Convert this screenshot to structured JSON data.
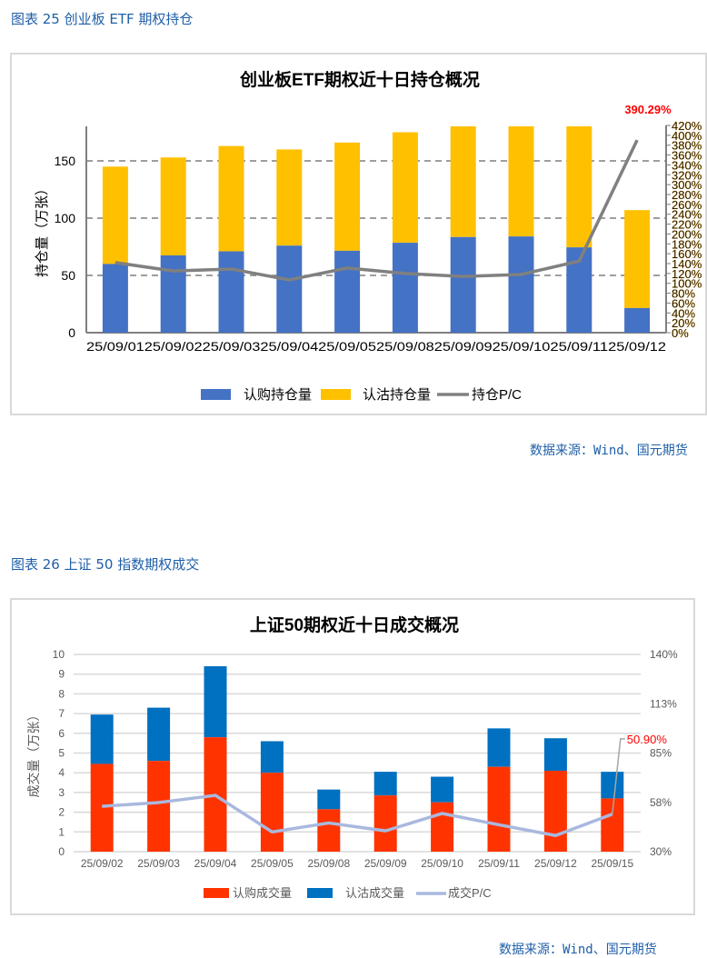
{
  "figures": [
    {
      "caption": "图表 25  创业板 ETF 期权持仓",
      "source": "数据来源：Wind、国元期货"
    },
    {
      "caption": "图表 26  上证 50 指数期权成交",
      "source": "数据来源：Wind、国元期货"
    }
  ],
  "colors": {
    "caption_blue": "#1f5fa8",
    "chart1_call": "#4472c4",
    "chart1_put": "#ffc000",
    "chart1_pc": "#808080",
    "chart2_call": "#ff3300",
    "chart2_put": "#0070c0",
    "chart2_pc": "#a9b8de",
    "annotation_red": "#ff0000"
  },
  "chart_data": [
    {
      "type": "bar",
      "stacked": true,
      "title": "创业板ETF期权近十日持仓概况",
      "ylabel": "持仓量（万张）",
      "y2label": "",
      "categories": [
        "25/09/01",
        "25/09/02",
        "25/09/03",
        "25/09/04",
        "25/09/05",
        "25/09/08",
        "25/09/09",
        "25/09/10",
        "25/09/11",
        "25/09/12"
      ],
      "ylim": [
        0,
        180
      ],
      "yticks": [
        0,
        50,
        100,
        150
      ],
      "y2lim": [
        0,
        420
      ],
      "y2ticks": [
        "0%",
        "20%",
        "40%",
        "60%",
        "80%",
        "100%",
        "120%",
        "140%",
        "160%",
        "180%",
        "200%",
        "220%",
        "240%",
        "260%",
        "280%",
        "300%",
        "320%",
        "340%",
        "360%",
        "380%",
        "400%",
        "420%"
      ],
      "grid": "dashed",
      "legend": "bottom",
      "series": [
        {
          "name": "认购持仓量",
          "kind": "bar",
          "axis": "left",
          "values": [
            60,
            67.5,
            71,
            76,
            71.5,
            78.5,
            83.5,
            84,
            74.5,
            21.5
          ]
        },
        {
          "name": "认沽持仓量",
          "kind": "bar",
          "axis": "left",
          "values": [
            85,
            85.5,
            92,
            84,
            94.5,
            96.5,
            110,
            112,
            120,
            85.5
          ]
        },
        {
          "name": "持仓P/C",
          "kind": "line",
          "axis": "right",
          "unit": "%",
          "values": [
            142,
            125,
            129,
            107,
            131,
            120,
            114,
            118,
            145,
            390.29
          ]
        }
      ],
      "annotation": {
        "text": "390.29%",
        "series": "持仓P/C",
        "index": 9
      }
    },
    {
      "type": "bar",
      "stacked": true,
      "title": "上证50期权近十日成交概况",
      "ylabel": "成交量（万张）",
      "categories": [
        "25/09/02",
        "25/09/03",
        "25/09/04",
        "25/09/05",
        "25/09/08",
        "25/09/09",
        "25/09/10",
        "25/09/11",
        "25/09/12",
        "25/09/15"
      ],
      "ylim": [
        0,
        10
      ],
      "yticks": [
        0,
        1,
        2,
        3,
        4,
        5,
        6,
        7,
        8,
        9,
        10
      ],
      "y2lim": [
        30,
        140
      ],
      "y2ticks": [
        "30%",
        "58%",
        "85%",
        "113%",
        "140%"
      ],
      "y2tickvalues": [
        30,
        57.5,
        85,
        112.5,
        140
      ],
      "grid": "solid",
      "legend": "bottom",
      "series": [
        {
          "name": "认购成交量",
          "kind": "bar",
          "axis": "left",
          "values": [
            4.45,
            4.6,
            5.8,
            4.0,
            2.15,
            2.85,
            2.5,
            4.3,
            4.1,
            2.7
          ]
        },
        {
          "name": "认沽成交量",
          "kind": "bar",
          "axis": "left",
          "values": [
            2.5,
            2.7,
            3.6,
            1.6,
            1.0,
            1.2,
            1.3,
            1.95,
            1.65,
            1.35
          ]
        },
        {
          "name": "成交P/C",
          "kind": "line",
          "axis": "right",
          "unit": "%",
          "values": [
            55.3,
            57.4,
            61.4,
            41,
            46,
            41.6,
            51.3,
            45,
            39,
            50.9
          ]
        }
      ],
      "annotation": {
        "text": "50.90%",
        "series": "成交P/C",
        "index": 9
      }
    }
  ]
}
